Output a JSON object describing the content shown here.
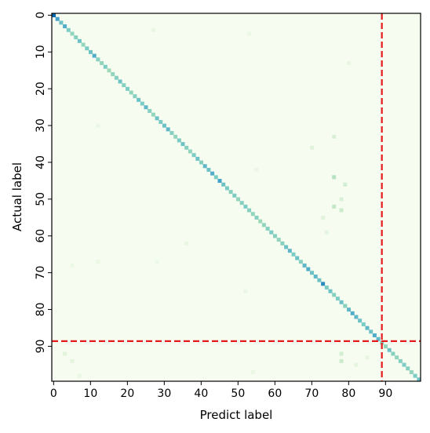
{
  "chart_data": {
    "type": "heatmap",
    "title": "",
    "xlabel": "Predict label",
    "ylabel": "Actual label",
    "n_classes": 100,
    "xticks": [
      0,
      10,
      20,
      30,
      40,
      50,
      60,
      70,
      80,
      90
    ],
    "yticks": [
      0,
      10,
      20,
      30,
      40,
      50,
      60,
      70,
      80,
      90
    ],
    "colormap": "GnBu",
    "colors": {
      "background": "#f7fcf0",
      "low": "#e0f3db",
      "mid": "#7bccc4",
      "high": "#0868ac",
      "guide_line": "#e41a1c",
      "frame": "#000000"
    },
    "diagonal_intensity": [
      1.0,
      0.75,
      0.6,
      0.7,
      0.55,
      0.45,
      0.5,
      0.6,
      0.45,
      0.55,
      0.6,
      0.7,
      0.5,
      0.45,
      0.55,
      0.4,
      0.45,
      0.5,
      0.6,
      0.5,
      0.55,
      0.45,
      0.5,
      0.6,
      0.55,
      0.65,
      0.5,
      0.45,
      0.6,
      0.55,
      0.6,
      0.65,
      0.5,
      0.45,
      0.55,
      0.6,
      0.5,
      0.45,
      0.55,
      0.6,
      0.5,
      0.65,
      0.6,
      0.7,
      0.55,
      0.75,
      0.6,
      0.55,
      0.5,
      0.55,
      0.45,
      0.5,
      0.55,
      0.5,
      0.45,
      0.5,
      0.4,
      0.45,
      0.5,
      0.55,
      0.5,
      0.45,
      0.5,
      0.6,
      0.65,
      0.55,
      0.6,
      0.5,
      0.65,
      0.7,
      0.6,
      0.65,
      0.6,
      0.85,
      0.55,
      0.6,
      0.5,
      0.55,
      0.6,
      0.5,
      0.65,
      0.7,
      0.65,
      0.6,
      0.55,
      0.65,
      0.6,
      0.7,
      0.65,
      0.5,
      0.45,
      0.6,
      0.5,
      0.45,
      0.5,
      0.55,
      0.5,
      0.45,
      0.55,
      0.6
    ],
    "off_diagonal": [
      {
        "x": 76,
        "y": 33,
        "v": 0.18
      },
      {
        "x": 70,
        "y": 36,
        "v": 0.15
      },
      {
        "x": 76,
        "y": 44,
        "v": 0.3
      },
      {
        "x": 79,
        "y": 46,
        "v": 0.2
      },
      {
        "x": 78,
        "y": 50,
        "v": 0.18
      },
      {
        "x": 76,
        "y": 52,
        "v": 0.25
      },
      {
        "x": 78,
        "y": 53,
        "v": 0.22
      },
      {
        "x": 73,
        "y": 55,
        "v": 0.14
      },
      {
        "x": 74,
        "y": 59,
        "v": 0.13
      },
      {
        "x": 36,
        "y": 62,
        "v": 0.1
      },
      {
        "x": 27,
        "y": 4,
        "v": 0.09
      },
      {
        "x": 53,
        "y": 5,
        "v": 0.08
      },
      {
        "x": 80,
        "y": 13,
        "v": 0.1
      },
      {
        "x": 12,
        "y": 30,
        "v": 0.08
      },
      {
        "x": 55,
        "y": 42,
        "v": 0.08
      },
      {
        "x": 5,
        "y": 68,
        "v": 0.07
      },
      {
        "x": 12,
        "y": 67,
        "v": 0.09
      },
      {
        "x": 28,
        "y": 67,
        "v": 0.07
      },
      {
        "x": 52,
        "y": 75,
        "v": 0.08
      },
      {
        "x": 3,
        "y": 92,
        "v": 0.14
      },
      {
        "x": 5,
        "y": 94,
        "v": 0.12
      },
      {
        "x": 78,
        "y": 92,
        "v": 0.2
      },
      {
        "x": 78,
        "y": 94,
        "v": 0.22
      },
      {
        "x": 82,
        "y": 95,
        "v": 0.12
      },
      {
        "x": 54,
        "y": 97,
        "v": 0.09
      },
      {
        "x": 7,
        "y": 98,
        "v": 0.08
      },
      {
        "x": 85,
        "y": 93,
        "v": 0.1
      }
    ],
    "guide_lines": {
      "vertical_x": 90,
      "horizontal_y": 90,
      "style": "dashed"
    }
  }
}
